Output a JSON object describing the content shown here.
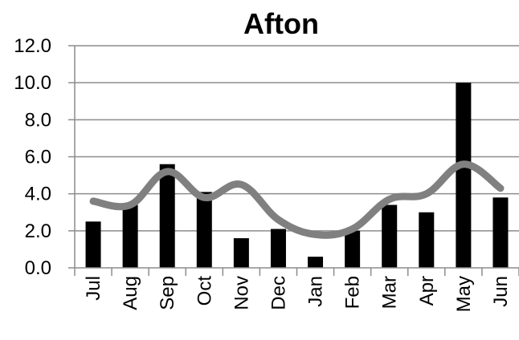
{
  "chart_data": {
    "type": "bar",
    "title": "Afton",
    "xlabel": "",
    "ylabel": "",
    "ylim": [
      0,
      12
    ],
    "y_ticks": [
      "0.0",
      "2.0",
      "4.0",
      "6.0",
      "8.0",
      "10.0",
      "12.0"
    ],
    "y_tick_values": [
      0,
      2,
      4,
      6,
      8,
      10,
      12
    ],
    "grid": true,
    "legend": "none",
    "categories": [
      "Jul",
      "Aug",
      "Sep",
      "Oct",
      "Nov",
      "Dec",
      "Jan",
      "Feb",
      "Mar",
      "Apr",
      "May",
      "Jun"
    ],
    "series": [
      {
        "type": "bar",
        "color": "#000000",
        "values": [
          2.5,
          3.4,
          5.6,
          4.1,
          1.6,
          2.1,
          0.6,
          2.0,
          3.4,
          3.0,
          10.0,
          3.8
        ]
      },
      {
        "type": "line",
        "color": "#808080",
        "values": [
          3.6,
          3.4,
          5.2,
          3.8,
          4.5,
          2.6,
          1.8,
          2.1,
          3.7,
          4.0,
          5.6,
          4.3
        ]
      }
    ]
  }
}
